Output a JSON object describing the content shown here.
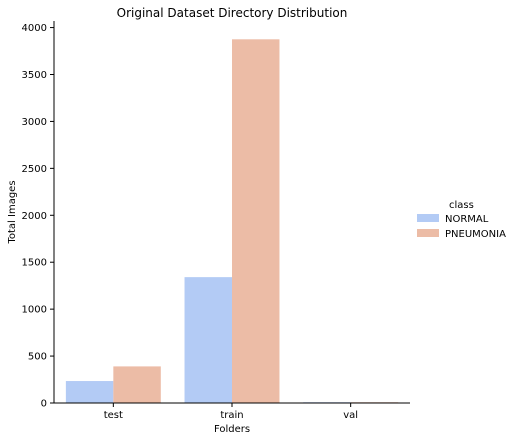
{
  "chart_data": {
    "type": "bar",
    "title": "Original Dataset Directory Distribution",
    "xlabel": "Folders",
    "ylabel": "Total Images",
    "categories": [
      "test",
      "train",
      "val"
    ],
    "series": [
      {
        "name": "NORMAL",
        "values": [
          234,
          1341,
          8
        ],
        "color": "#b3cbf5"
      },
      {
        "name": "PNEUMONIA",
        "values": [
          390,
          3875,
          8
        ],
        "color": "#ecbca6"
      }
    ],
    "ylim": [
      0,
      4070
    ],
    "yticks": [
      0,
      500,
      1000,
      1500,
      2000,
      2500,
      3000,
      3500,
      4000
    ],
    "grid": false,
    "legend": {
      "title": "class",
      "placement": "right"
    }
  }
}
